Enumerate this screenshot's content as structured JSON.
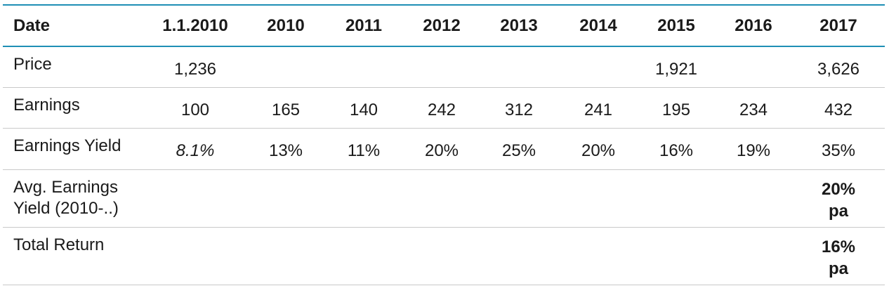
{
  "table": {
    "headers": [
      "Date",
      "1.1.2010",
      "2010",
      "2011",
      "2012",
      "2013",
      "2014",
      "2015",
      "2016",
      "2017"
    ],
    "rows": [
      {
        "label": "Price",
        "cells": [
          "1,236",
          "",
          "",
          "",
          "",
          "",
          "1,921",
          "",
          "3,626"
        ]
      },
      {
        "label": "Earnings",
        "cells": [
          "100",
          "165",
          "140",
          "242",
          "312",
          "241",
          "195",
          "234",
          "432"
        ]
      },
      {
        "label": "Earnings Yield",
        "cells": [
          "8.1%",
          "13%",
          "11%",
          "20%",
          "25%",
          "20%",
          "16%",
          "19%",
          "35%"
        ]
      },
      {
        "label_lines": [
          "Avg. Earnings",
          "Yield (2010-..)"
        ],
        "cells": [
          "",
          "",
          "",
          "",
          "",
          "",
          "",
          "",
          ""
        ],
        "total_lines": [
          "20%",
          "pa"
        ]
      },
      {
        "label": "Total Return",
        "cells": [
          "",
          "",
          "",
          "",
          "",
          "",
          "",
          "",
          ""
        ],
        "total_lines": [
          "16%",
          "pa"
        ]
      }
    ]
  },
  "colors": {
    "header_rule": "#1f8fb5",
    "row_rule": "#c9c9c9",
    "text": "#1a1a1a"
  }
}
